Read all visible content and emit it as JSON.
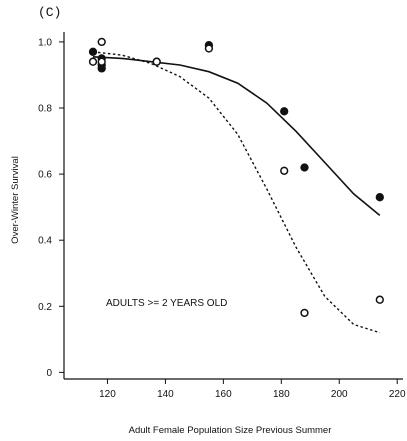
{
  "chart_data": {
    "type": "scatter",
    "panel_label": "(C)",
    "xlabel": "Adult Female Population Size Previous Summer",
    "ylabel": "Over-Winter Survival",
    "xlim": [
      105,
      222
    ],
    "ylim": [
      -0.02,
      1.03
    ],
    "xticks": [
      120,
      140,
      160,
      180,
      200,
      220
    ],
    "yticks": [
      0,
      0.2,
      0.4,
      0.6,
      0.8,
      1.0
    ],
    "xtick_labels": [
      "120",
      "140",
      "160",
      "180",
      "200",
      "220"
    ],
    "ytick_labels": [
      "0",
      "0.2",
      "0.4",
      "0.6",
      "0.8",
      "1.0"
    ],
    "annotation": "ADULTS >= 2 YEARS OLD",
    "grid": false,
    "series": [
      {
        "marker": "filled-circle",
        "x": [
          115,
          118,
          118,
          118,
          137,
          155,
          181,
          188,
          214
        ],
        "y": [
          0.97,
          0.95,
          0.93,
          0.92,
          0.94,
          0.99,
          0.79,
          0.62,
          0.53
        ]
      },
      {
        "marker": "open-circle",
        "x": [
          115,
          118,
          118,
          137,
          155,
          181,
          188,
          214
        ],
        "y": [
          0.94,
          1.0,
          0.94,
          0.94,
          0.98,
          0.61,
          0.18,
          0.22
        ]
      },
      {
        "line_style": "solid",
        "x": [
          115,
          125,
          135,
          145,
          155,
          165,
          175,
          185,
          195,
          205,
          214
        ],
        "y": [
          0.955,
          0.95,
          0.94,
          0.93,
          0.91,
          0.875,
          0.815,
          0.73,
          0.635,
          0.54,
          0.475
        ]
      },
      {
        "line_style": "dotted",
        "x": [
          115,
          125,
          135,
          145,
          155,
          165,
          175,
          185,
          195,
          205,
          214
        ],
        "y": [
          0.97,
          0.96,
          0.935,
          0.895,
          0.83,
          0.72,
          0.555,
          0.38,
          0.23,
          0.145,
          0.12
        ]
      }
    ]
  }
}
